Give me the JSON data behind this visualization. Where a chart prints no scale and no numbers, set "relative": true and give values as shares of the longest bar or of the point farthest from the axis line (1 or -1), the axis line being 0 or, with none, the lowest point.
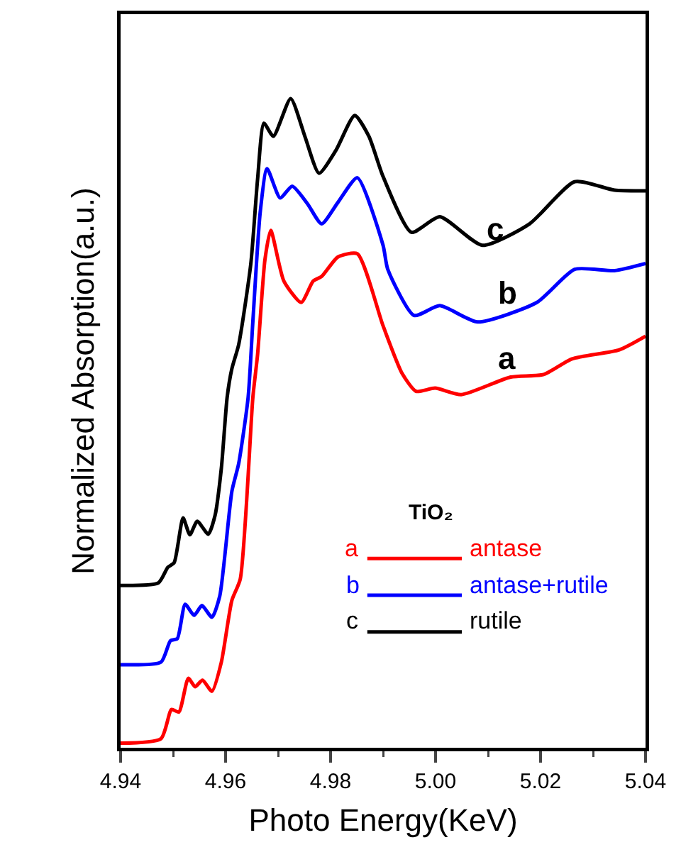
{
  "chart_data": {
    "type": "line",
    "relative": true,
    "xlabel": "Photo Energy(KeV)",
    "ylabel": "Normalized Absorption(a.u.)",
    "legend_title": "TiO₂",
    "legend": "bottom right",
    "tick_labels": "x",
    "grid": false,
    "marker": "none",
    "line_style": "solid",
    "xlim": [
      4.94,
      5.04
    ],
    "xticks": [
      {
        "value": 4.94,
        "label": "4.94"
      },
      {
        "value": 4.96,
        "label": "4.96"
      },
      {
        "value": 4.98,
        "label": "4.98"
      },
      {
        "value": 5.0,
        "label": "5.00"
      },
      {
        "value": 5.02,
        "label": "5.02"
      },
      {
        "value": 5.04,
        "label": "5.04"
      }
    ],
    "series": [
      {
        "name": "antase",
        "color": "#ff0000",
        "x": [
          4.94,
          4.9477,
          4.9497,
          4.9511,
          4.9529,
          4.9542,
          4.9556,
          4.9574,
          4.9592,
          4.9612,
          4.9628,
          4.9652,
          4.9661,
          4.9675,
          4.9686,
          4.9711,
          4.9744,
          4.9767,
          4.9783,
          4.9814,
          4.9851,
          4.99,
          4.9936,
          4.9963,
          4.9999,
          5.0049,
          5.0143,
          5.0206,
          5.026,
          5.035,
          5.04
        ],
        "values": [
          0.007,
          0.014,
          0.059,
          0.055,
          0.107,
          0.094,
          0.104,
          0.087,
          0.132,
          0.227,
          0.26,
          0.54,
          0.606,
          0.752,
          0.797,
          0.719,
          0.686,
          0.719,
          0.726,
          0.756,
          0.761,
          0.65,
          0.577,
          0.549,
          0.554,
          0.544,
          0.571,
          0.575,
          0.599,
          0.613,
          0.634
        ]
      },
      {
        "name": "antase+rutile",
        "color": "#0000ff",
        "x": [
          4.94,
          4.9477,
          4.9495,
          4.9508,
          4.9523,
          4.954,
          4.9555,
          4.9574,
          4.9589,
          4.9612,
          4.9625,
          4.9643,
          4.9652,
          4.9666,
          4.9679,
          4.9704,
          4.9727,
          4.9756,
          4.9783,
          4.9814,
          4.9851,
          4.99,
          4.9909,
          4.9959,
          5.0008,
          5.008,
          5.0193,
          5.0265,
          5.0341,
          5.04
        ],
        "values": [
          0.128,
          0.132,
          0.165,
          0.168,
          0.221,
          0.204,
          0.219,
          0.201,
          0.234,
          0.395,
          0.438,
          0.54,
          0.657,
          0.825,
          0.892,
          0.847,
          0.865,
          0.838,
          0.807,
          0.84,
          0.878,
          0.774,
          0.737,
          0.666,
          0.681,
          0.656,
          0.686,
          0.737,
          0.735,
          0.746
        ]
      },
      {
        "name": "rutile",
        "color": "#000000",
        "x": [
          4.94,
          4.9472,
          4.949,
          4.9502,
          4.9519,
          4.9532,
          4.9546,
          4.9567,
          4.958,
          4.9592,
          4.9603,
          4.9612,
          4.9625,
          4.9648,
          4.9661,
          4.9673,
          4.9691,
          4.9724,
          4.9751,
          4.9778,
          4.981,
          4.9846,
          4.9873,
          4.99,
          4.9954,
          5.0008,
          5.0089,
          5.0179,
          5.0265,
          5.0341,
          5.04
        ],
        "values": [
          0.25,
          0.254,
          0.278,
          0.285,
          0.354,
          0.328,
          0.349,
          0.329,
          0.358,
          0.431,
          0.54,
          0.584,
          0.621,
          0.745,
          0.876,
          0.962,
          0.942,
          1,
          0.942,
          0.885,
          0.92,
          0.974,
          0.942,
          0.88,
          0.794,
          0.818,
          0.774,
          0.807,
          0.872,
          0.859,
          0.858
        ]
      }
    ],
    "annotations": [
      "a",
      "b",
      "c"
    ]
  }
}
